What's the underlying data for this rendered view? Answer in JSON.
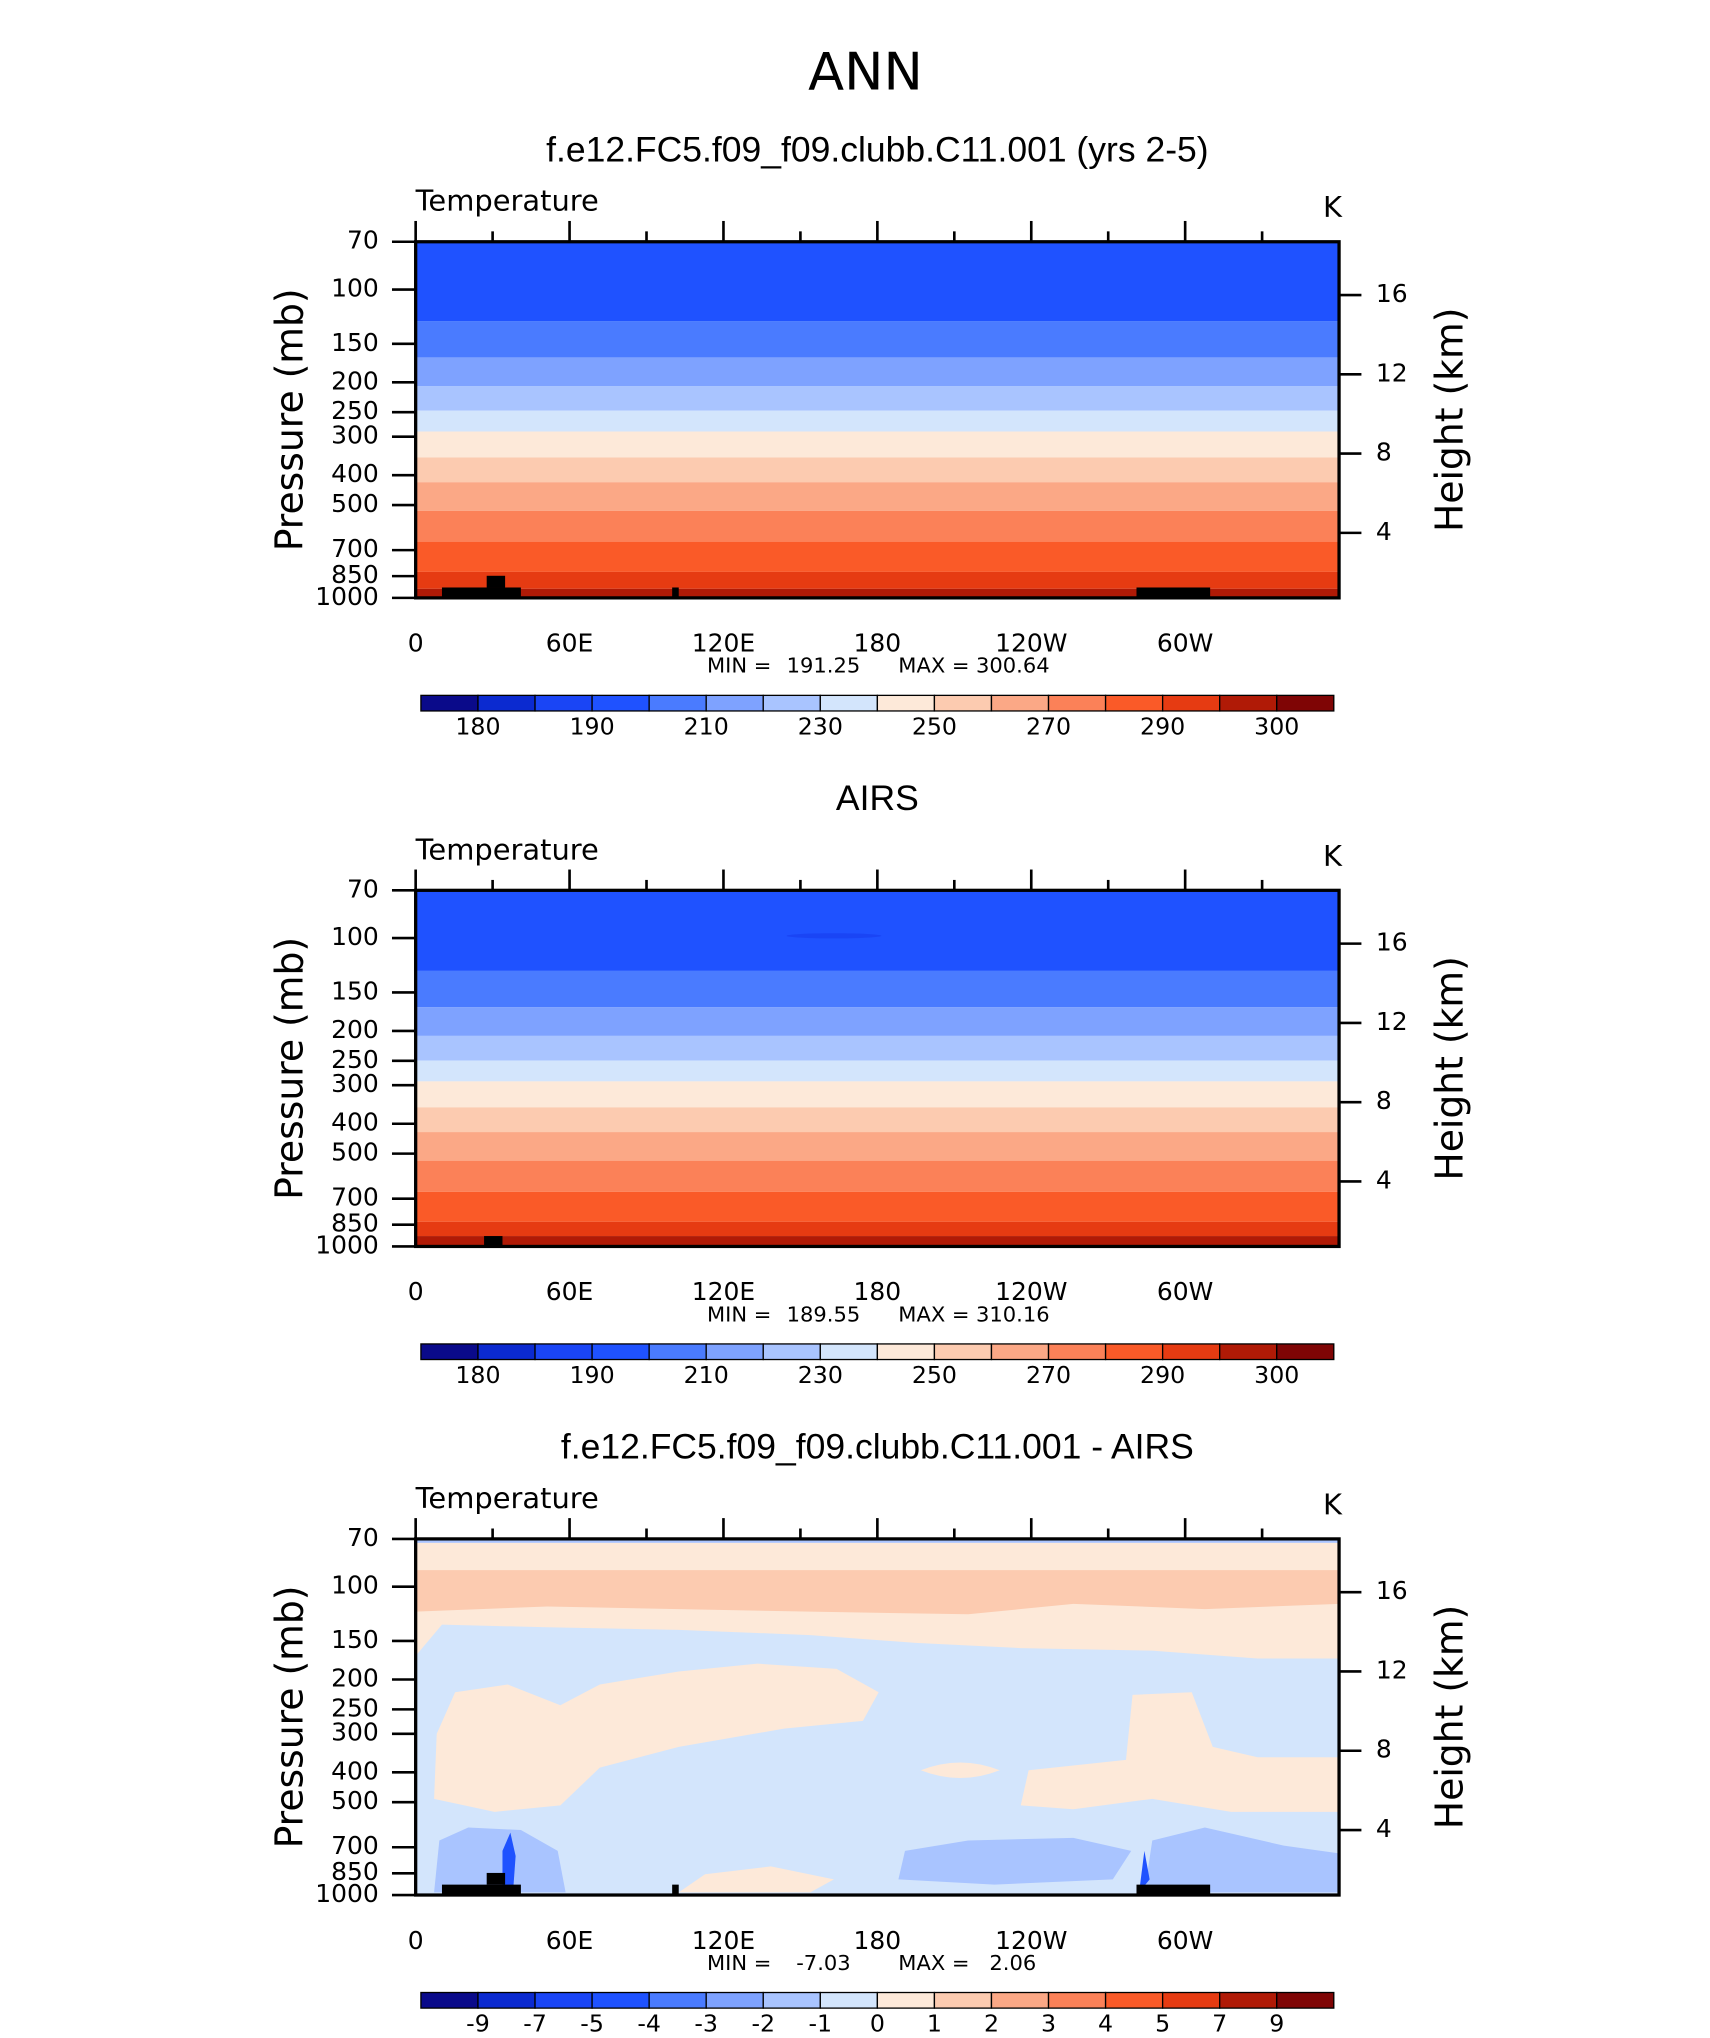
{
  "title": "ANN",
  "chart_data": [
    {
      "type": "contour",
      "title": "f.e12.FC5.f09_f09.clubb.C11.001 (yrs 2-5)",
      "label": "Temperature",
      "units": "K",
      "ylabel": "Pressure (mb)",
      "y2label": "Height (km)",
      "log_y": true,
      "ylim": [
        1000,
        70
      ],
      "yticks": [
        70,
        100,
        150,
        200,
        250,
        300,
        400,
        500,
        700,
        850,
        1000
      ],
      "y2lim": [
        0.72,
        18.69
      ],
      "y2ticks": [
        4,
        8,
        12,
        16
      ],
      "xlim": [
        0,
        360
      ],
      "xticks": [
        0,
        {
          "value": 60,
          "label": "60E"
        },
        {
          "value": 120,
          "label": "120E"
        },
        180,
        {
          "value": 240,
          "label": "120W"
        },
        {
          "value": 300,
          "label": "60W"
        }
      ],
      "min_label": "MIN =",
      "min": 191.25,
      "max_label": "MAX =",
      "max": 300.64,
      "colorbar": {
        "colors": [
          "#0a0a8a",
          "#0b2ad0",
          "#1a45f5",
          "#1f52ff",
          "#4a7bff",
          "#7ea2ff",
          "#a9c4ff",
          "#d3e5fc",
          "#fde9d9",
          "#fccbb0",
          "#fba886",
          "#fb8158",
          "#fa5a28",
          "#e63b12",
          "#b01a06",
          "#7f0505"
        ],
        "ticks": [
          180,
          190,
          210,
          230,
          250,
          270,
          290,
          300
        ]
      }
    },
    {
      "type": "contour",
      "title": "AIRS",
      "label": "Temperature",
      "units": "K",
      "ylabel": "Pressure (mb)",
      "y2label": "Height (km)",
      "log_y": true,
      "ylim": [
        1000,
        70
      ],
      "yticks": [
        70,
        100,
        150,
        200,
        250,
        300,
        400,
        500,
        700,
        850,
        1000
      ],
      "y2lim": [
        0.72,
        18.69
      ],
      "y2ticks": [
        4,
        8,
        12,
        16
      ],
      "xlim": [
        0,
        360
      ],
      "xticks": [
        0,
        {
          "value": 60,
          "label": "60E"
        },
        {
          "value": 120,
          "label": "120E"
        },
        180,
        {
          "value": 240,
          "label": "120W"
        },
        {
          "value": 300,
          "label": "60W"
        }
      ],
      "min_label": "MIN =",
      "min": 189.55,
      "max_label": "MAX =",
      "max": 310.16,
      "colorbar": {
        "colors": [
          "#0a0a8a",
          "#0b2ad0",
          "#1a45f5",
          "#1f52ff",
          "#4a7bff",
          "#7ea2ff",
          "#a9c4ff",
          "#d3e5fc",
          "#fde9d9",
          "#fccbb0",
          "#fba886",
          "#fb8158",
          "#fa5a28",
          "#e63b12",
          "#b01a06",
          "#7f0505"
        ],
        "ticks": [
          180,
          190,
          210,
          230,
          250,
          270,
          290,
          300
        ]
      }
    },
    {
      "type": "contour",
      "title": "f.e12.FC5.f09_f09.clubb.C11.001 - AIRS",
      "label": "Temperature",
      "units": "K",
      "ylabel": "Pressure (mb)",
      "y2label": "Height (km)",
      "log_y": true,
      "ylim": [
        1000,
        70
      ],
      "yticks": [
        70,
        100,
        150,
        200,
        250,
        300,
        400,
        500,
        700,
        850,
        1000
      ],
      "y2lim": [
        0.72,
        18.69
      ],
      "y2ticks": [
        4,
        8,
        12,
        16
      ],
      "xlim": [
        0,
        360
      ],
      "xticks": [
        0,
        {
          "value": 60,
          "label": "60E"
        },
        {
          "value": 120,
          "label": "120E"
        },
        180,
        {
          "value": 240,
          "label": "120W"
        },
        {
          "value": 300,
          "label": "60W"
        }
      ],
      "min_label": "MIN =",
      "min": -7.03,
      "max_label": "MAX =",
      "max": 2.06,
      "colorbar": {
        "colors": [
          "#0a0a8a",
          "#0b2ad0",
          "#1a45f5",
          "#1f52ff",
          "#4a7bff",
          "#7ea2ff",
          "#a9c4ff",
          "#d3e5fc",
          "#fde9d9",
          "#fccbb0",
          "#fba886",
          "#fb8158",
          "#fa5a28",
          "#e63b12",
          "#b01a06",
          "#7f0505"
        ],
        "ticks": [
          -9,
          -7,
          -5,
          -4,
          -3,
          -2,
          -1,
          0,
          1,
          2,
          3,
          4,
          5,
          7,
          9
        ]
      }
    }
  ]
}
